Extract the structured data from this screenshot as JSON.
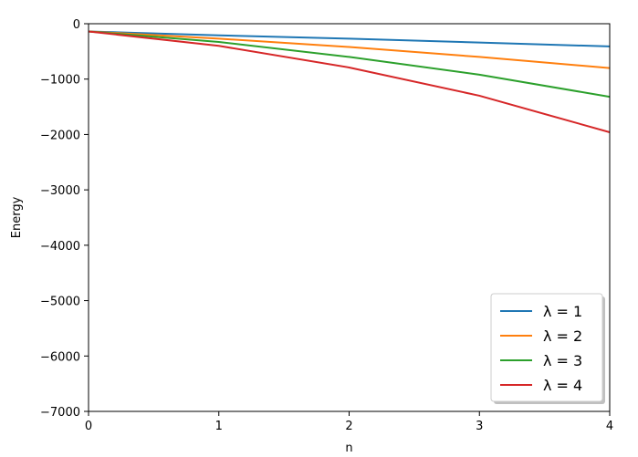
{
  "chart_data": {
    "type": "line",
    "title": "",
    "xlabel": "n",
    "ylabel": "Energy",
    "xlim": [
      0,
      4
    ],
    "ylim": [
      -7000,
      0
    ],
    "x_ticks": [
      0,
      1,
      2,
      3,
      4
    ],
    "y_ticks": [
      0,
      -1000,
      -2000,
      -3000,
      -4000,
      -5000,
      -6000,
      -7000
    ],
    "y_tick_labels": [
      "0",
      "−1000",
      "−2000",
      "−3000",
      "−4000",
      "−5000",
      "−6000",
      "−7000"
    ],
    "grid": false,
    "legend_position": "bottom-right",
    "x": [
      0,
      1,
      2,
      3,
      4
    ],
    "series": [
      {
        "name": "λ = 1",
        "color": "#1f77b4",
        "values": [
          -140,
          -210,
          -270,
          -340,
          -410
        ]
      },
      {
        "name": "λ = 2",
        "color": "#ff7f0e",
        "values": [
          -140,
          -270,
          -420,
          -600,
          -800
        ]
      },
      {
        "name": "λ = 3",
        "color": "#2ca02c",
        "values": [
          -140,
          -330,
          -600,
          -920,
          -1320
        ]
      },
      {
        "name": "λ = 4",
        "color": "#d62728",
        "values": [
          -140,
          -400,
          -790,
          -1300,
          -1960
        ]
      }
    ]
  }
}
